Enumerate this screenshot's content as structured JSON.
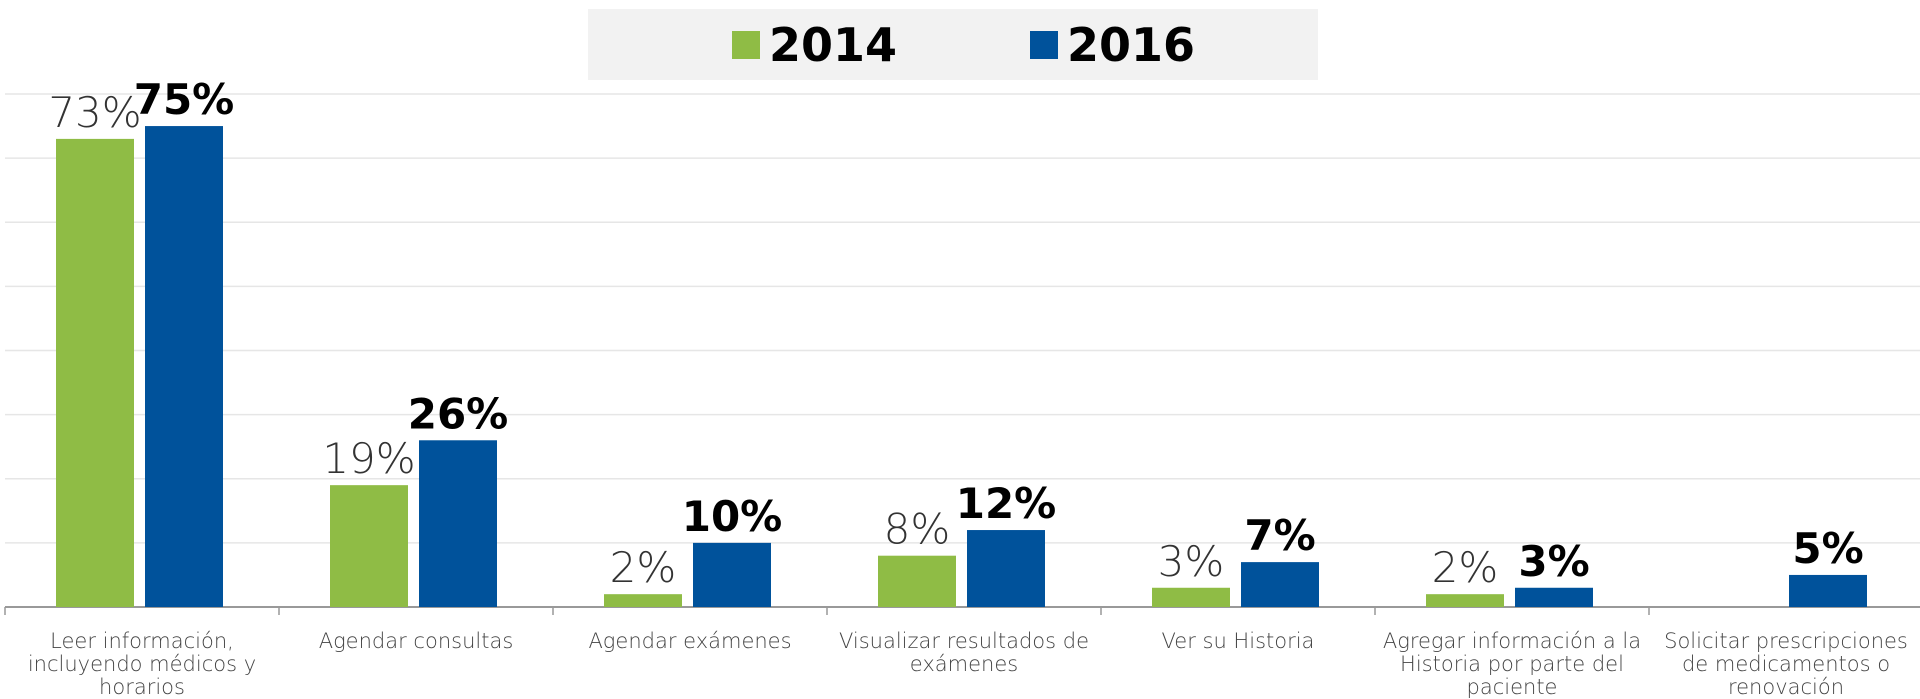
{
  "chart_data": {
    "type": "bar",
    "categories": [
      "Leer información, incluyendo médicos y horarios",
      "Agendar consultas",
      "Agendar exámenes",
      "Visualizar resultados de exámenes",
      "Ver su Historia",
      "Agregar información a la Historia por parte del paciente",
      "Solicitar prescripciones de medicamentos o renovación"
    ],
    "series": [
      {
        "name": "2014",
        "color": "#8fbc45",
        "values": [
          73,
          19,
          2,
          8,
          3,
          2,
          null
        ],
        "value_labels": [
          "73%",
          "19%",
          "2%",
          "8%",
          "3%",
          "2%",
          null
        ]
      },
      {
        "name": "2016",
        "color": "#00529b",
        "values": [
          75,
          26,
          10,
          12,
          7,
          3,
          5
        ],
        "value_labels": [
          "75%",
          "26%",
          "10%",
          "12%",
          "7%",
          "3%",
          "5%"
        ]
      }
    ],
    "ylim": [
      0,
      80
    ],
    "yticks": [
      0,
      10,
      20,
      30,
      40,
      50,
      60,
      70,
      80
    ],
    "grid": true,
    "legend": "top"
  }
}
